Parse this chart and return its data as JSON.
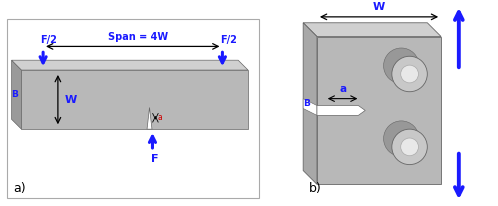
{
  "fig_width": 4.98,
  "fig_height": 2.06,
  "dpi": 100,
  "background_color": "#ffffff",
  "arrow_color": "#1a1aff",
  "line_color": "#000000",
  "gray_front": "#b8b8b8",
  "gray_top": "#d0d0d0",
  "gray_side": "#a0a0a0",
  "gray_dark": "#888888",
  "edge_color": "#666666",
  "text_color_blue": "#1a1aff",
  "text_color_red": "#cc0000",
  "label_a": "a",
  "label_b": "B",
  "label_w": "W",
  "label_f": "F",
  "label_f2": "F/2",
  "label_span": "Span = 4W",
  "label_a_fig": "a)",
  "label_b_fig": "b)"
}
